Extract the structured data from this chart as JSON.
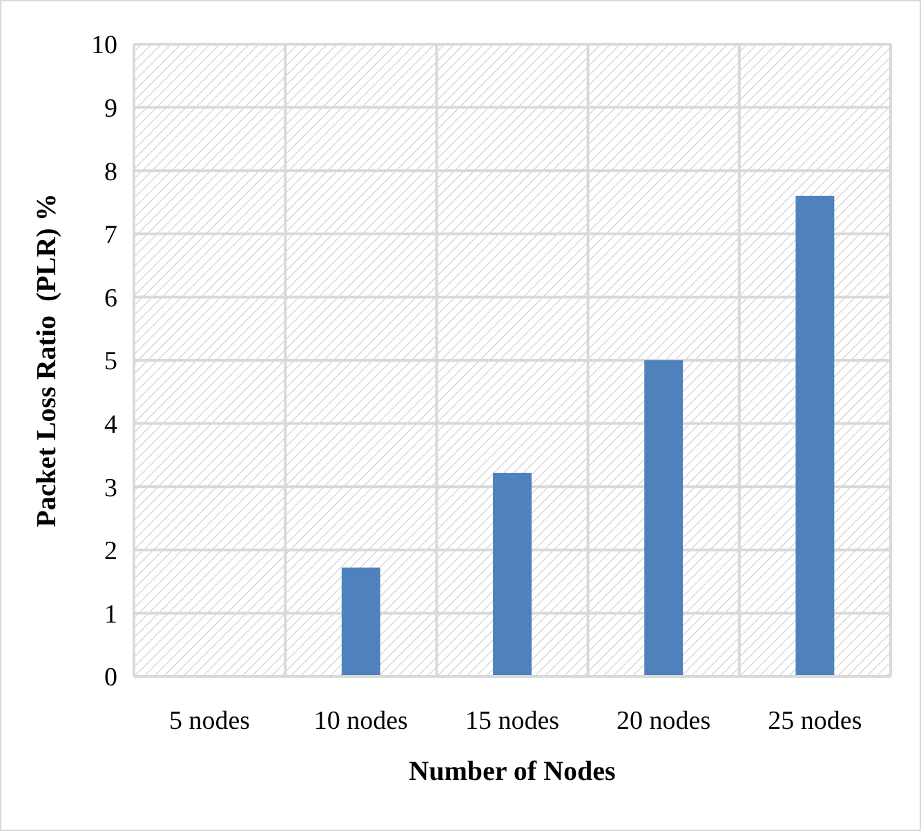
{
  "chart_data": {
    "type": "bar",
    "xlabel": "Number of Nodes",
    "ylabel": "Packet Loss Ratio  (PLR) %",
    "categories": [
      "5 nodes",
      "10 nodes",
      "15 nodes",
      "20 nodes",
      "25 nodes"
    ],
    "values": [
      0,
      1.72,
      3.22,
      5.0,
      7.6
    ],
    "color": "#4f81bd",
    "ylim": [
      0,
      10
    ],
    "yticks": [
      0,
      1,
      2,
      3,
      4,
      5,
      6,
      7,
      8,
      9,
      10
    ],
    "grid": true
  }
}
